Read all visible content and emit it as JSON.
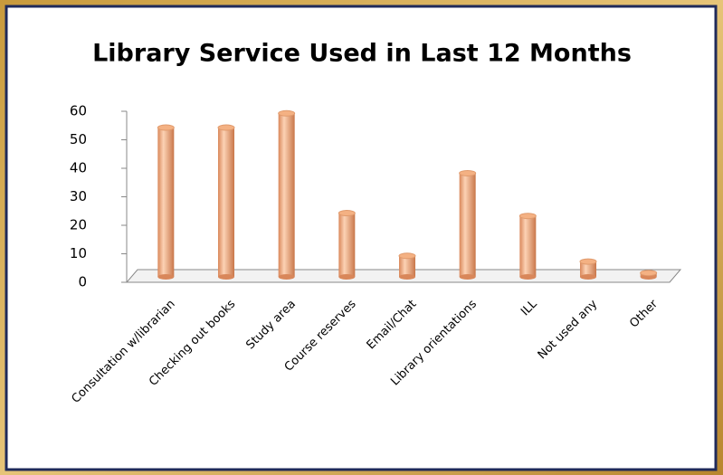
{
  "chart_data": {
    "type": "bar",
    "title": "Library Service Used in Last 12 Months",
    "categories": [
      "Consultation w/librarian",
      "Checking out books",
      "Study area",
      "Course reserves",
      "Email/Chat",
      "Library orientations",
      "ILL",
      "Not used any",
      "Other"
    ],
    "values": [
      53,
      53,
      58,
      23,
      8,
      37,
      22,
      6,
      2
    ],
    "color": "#f4b183",
    "ylim": [
      0,
      60
    ],
    "yticks": [
      0,
      10,
      20,
      30,
      40,
      50,
      60
    ],
    "grid": false
  }
}
